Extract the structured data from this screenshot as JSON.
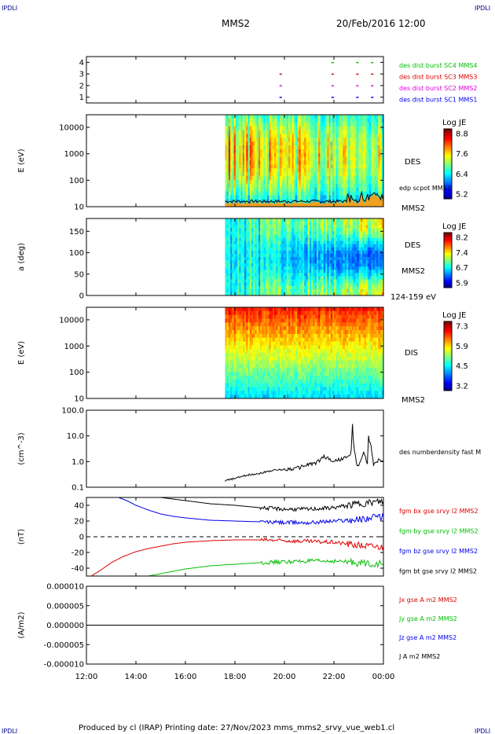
{
  "header": {
    "corner_label": "IPDLI",
    "title": "MMS2",
    "date": "20/Feb/2016 12:00"
  },
  "footer": {
    "text": "Produced by cl (IRAP)   Printing date: 27/Nov/2023   mms_mms2_srvy_vue_web1.cl",
    "corner_label": "IPDLI"
  },
  "time_axis": {
    "start_hour": 12,
    "end_hour": 24,
    "ticks": [
      "12:00",
      "14:00",
      "16:00",
      "18:00",
      "20:00",
      "22:00",
      "00:00"
    ]
  },
  "chart_data": [
    {
      "id": "burst",
      "type": "scatter",
      "ylim": [
        0.5,
        4.5
      ],
      "yticks": [
        "1",
        "2",
        "3",
        "4"
      ],
      "ylabel": "",
      "legend_placement": "right",
      "series": [
        {
          "name": "des dist burst SC1 MMS1",
          "y": 1,
          "color": "#0000ee",
          "x": [
            19.8,
            21.9,
            22.9,
            23.5
          ]
        },
        {
          "name": "des dist burst SC2 MMS2",
          "y": 2,
          "color": "#e000e0",
          "x": [
            19.8,
            21.9,
            22.9,
            23.5
          ]
        },
        {
          "name": "des dist burst SC3 MMS3",
          "y": 3,
          "color": "#e00000",
          "x": [
            19.8,
            21.9,
            22.9,
            23.5
          ]
        },
        {
          "name": "des dist burst SC4 MMS4",
          "y": 4,
          "color": "#00c000",
          "x": [
            21.9,
            22.9,
            23.5
          ]
        }
      ]
    },
    {
      "id": "des_energy",
      "type": "heatmap",
      "data_start_hour": 17.6,
      "ylabel": "E (eV)",
      "ylog": true,
      "ylim": [
        10,
        30000
      ],
      "yticks": [
        "10",
        "100",
        "1000",
        "10000"
      ],
      "right_labels": [
        "DES",
        "edp scpot MMS2",
        "MMS2"
      ],
      "colorbar": {
        "title": "Log JE",
        "ticks": [
          "8.8",
          "7.6",
          "6.4",
          "5.2"
        ],
        "min": 5.2,
        "max": 8.8
      }
    },
    {
      "id": "des_pitch",
      "type": "heatmap",
      "data_start_hour": 17.6,
      "ylabel": "a (deg)",
      "ylim": [
        0,
        180
      ],
      "yticks": [
        "0",
        "50",
        "100",
        "150"
      ],
      "right_labels": [
        "DES",
        "MMS2",
        "124-159 eV"
      ],
      "colorbar": {
        "title": "Log JE",
        "ticks": [
          "8.2",
          "7.4",
          "6.7",
          "5.9"
        ],
        "min": 5.9,
        "max": 8.2
      }
    },
    {
      "id": "dis_energy",
      "type": "heatmap",
      "data_start_hour": 17.6,
      "ylabel": "E (eV)",
      "ylog": true,
      "ylim": [
        10,
        30000
      ],
      "yticks": [
        "10",
        "100",
        "1000",
        "10000"
      ],
      "right_labels": [
        "DIS",
        "MMS2"
      ],
      "colorbar": {
        "title": "Log JE",
        "ticks": [
          "7.3",
          "5.9",
          "4.5",
          "3.2"
        ],
        "min": 3.2,
        "max": 7.3
      }
    },
    {
      "id": "density",
      "type": "line",
      "ylabel": "(cm^-3)",
      "ylog": true,
      "ylim": [
        0.1,
        100
      ],
      "yticks": [
        "0.1",
        "1.0",
        "10.0",
        "100.0"
      ],
      "series": [
        {
          "name": "des numberdensity fast M",
          "color": "#000000",
          "x": [
            17.6,
            18.0,
            18.5,
            19.0,
            19.5,
            20.0,
            20.5,
            21.0,
            21.3,
            21.6,
            22.0,
            22.3,
            22.6,
            22.7,
            22.75,
            22.8,
            22.9,
            23.0,
            23.2,
            23.35,
            23.4,
            23.5,
            23.6,
            23.8,
            24.0
          ],
          "y": [
            0.18,
            0.22,
            0.3,
            0.35,
            0.45,
            0.5,
            0.55,
            0.8,
            0.9,
            1.6,
            1.0,
            1.3,
            1.5,
            2.5,
            28,
            4.0,
            1.0,
            0.6,
            2.5,
            0.8,
            9.0,
            4.0,
            0.7,
            1.2,
            1.0
          ]
        }
      ]
    },
    {
      "id": "fgm",
      "type": "line",
      "ylabel": "(nT)",
      "ylim": [
        -50,
        50
      ],
      "yticks": [
        "-40",
        "-20",
        "0",
        "20",
        "40"
      ],
      "zero_line": true,
      "series": [
        {
          "name": "fgm bx gse srvy l2 MMS2",
          "color": "#e00000",
          "x": [
            12.2,
            12.6,
            13.0,
            13.5,
            14.0,
            14.5,
            15.0,
            15.5,
            16.0,
            17.0,
            18.0,
            19.0,
            20.0,
            21.0,
            22.0,
            23.0,
            24.0
          ],
          "y": [
            -50,
            -42,
            -33,
            -25,
            -19,
            -15,
            -12,
            -9,
            -7,
            -5,
            -4,
            -4,
            -5,
            -6,
            -7,
            -11,
            -13
          ]
        },
        {
          "name": "fgm by gse srvy l2 MMS2",
          "color": "#00c000",
          "x": [
            14.5,
            15.0,
            15.5,
            16.0,
            17.0,
            18.0,
            19.0,
            20.0,
            21.0,
            22.0,
            23.0,
            24.0
          ],
          "y": [
            -50,
            -47,
            -44,
            -41,
            -37,
            -35,
            -33,
            -32,
            -31,
            -31,
            -33,
            -35
          ]
        },
        {
          "name": "fgm bz gse srvy l2 MMS2",
          "color": "#0000ee",
          "x": [
            13.3,
            13.7,
            14.0,
            14.5,
            15.0,
            15.5,
            16.0,
            17.0,
            18.0,
            19.0,
            20.0,
            21.0,
            22.0,
            23.0,
            24.0
          ],
          "y": [
            50,
            45,
            40,
            34,
            29,
            26,
            24,
            21,
            20,
            19,
            18,
            18,
            20,
            22,
            26
          ]
        },
        {
          "name": "fgm bt gse srvy l2 MMS2",
          "color": "#000000",
          "x": [
            15.0,
            15.5,
            16.0,
            17.0,
            18.0,
            19.0,
            20.0,
            21.0,
            22.0,
            23.0,
            24.0
          ],
          "y": [
            50,
            48,
            46,
            42,
            40,
            37,
            35,
            35,
            37,
            42,
            45
          ]
        }
      ]
    },
    {
      "id": "current",
      "type": "line",
      "ylabel": "(A/m2)",
      "ylim": [
        -1e-05,
        1e-05
      ],
      "yticks": [
        "-0.000010",
        "-0.000005",
        "0.000000",
        "0.000005",
        "0.000010"
      ],
      "series": [
        {
          "name": "Jx gse A m2 MMS2",
          "color": "#e00000",
          "x": [
            12,
            24
          ],
          "y": [
            0,
            0
          ]
        },
        {
          "name": "Jy gse A m2 MMS2",
          "color": "#00c000",
          "x": [
            12,
            24
          ],
          "y": [
            0,
            0
          ]
        },
        {
          "name": "Jz gse A m2 MMS2",
          "color": "#0000ee",
          "x": [
            12,
            24
          ],
          "y": [
            0,
            0
          ]
        },
        {
          "name": "J A m2 MMS2",
          "color": "#000000",
          "x": [
            12,
            24
          ],
          "y": [
            0,
            0
          ]
        }
      ]
    }
  ]
}
